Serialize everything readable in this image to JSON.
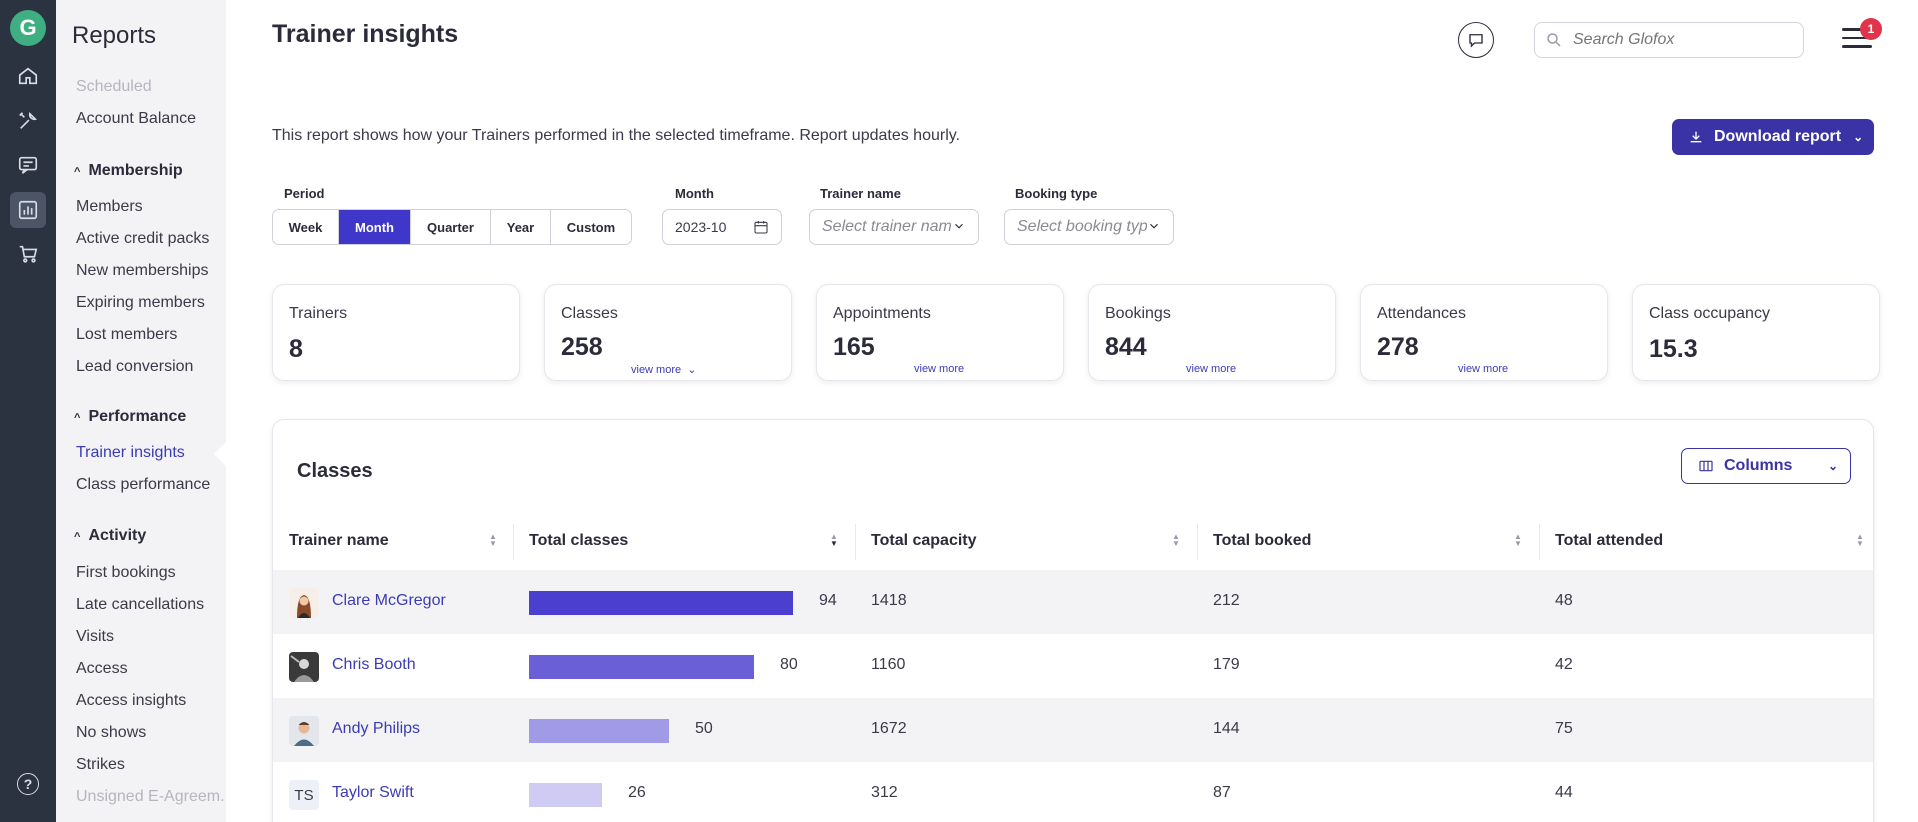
{
  "rail": {
    "logo": "G",
    "icons": [
      "home-icon",
      "tools-icon",
      "messages-icon",
      "reports-icon",
      "cart-icon",
      "help-icon"
    ],
    "colors": {
      "background": "#2b3340",
      "active": "#4b5566",
      "logo": "#3fae82"
    }
  },
  "subnav": {
    "title": "Reports",
    "items_top": [
      "Scheduled",
      "Account Balance"
    ],
    "sections": [
      {
        "label": "Membership",
        "items": [
          "Members",
          "Active credit packs",
          "New memberships",
          "Expiring members",
          "Lost members",
          "Lead conversion"
        ]
      },
      {
        "label": "Performance",
        "items": [
          "Trainer insights",
          "Class performance"
        ]
      },
      {
        "label": "Activity",
        "items": [
          "First bookings",
          "Late cancellations",
          "Visits",
          "Access",
          "Access insights",
          "No shows",
          "Strikes",
          "Unsigned E-Agreem..."
        ]
      }
    ],
    "active_item": "Trainer insights"
  },
  "header": {
    "title": "Trainer insights",
    "search_placeholder": "Search Glofox",
    "notification_count": "1"
  },
  "description": "This report shows how your Trainers performed in the selected timeframe. Report updates hourly.",
  "download_label": "Download report",
  "filters": {
    "period_label": "Period",
    "period_options": [
      "Week",
      "Month",
      "Quarter",
      "Year",
      "Custom"
    ],
    "period_selected": "Month",
    "month_label": "Month",
    "month_value": "2023-10",
    "trainer_label": "Trainer name",
    "trainer_placeholder": "Select trainer name",
    "booking_label": "Booking type",
    "booking_placeholder": "Select booking type"
  },
  "stats": [
    {
      "label": "Trainers",
      "value": "8",
      "more": ""
    },
    {
      "label": "Classes",
      "value": "258",
      "more": "view more"
    },
    {
      "label": "Appointments",
      "value": "165",
      "more": "view more"
    },
    {
      "label": "Bookings",
      "value": "844",
      "more": "view more"
    },
    {
      "label": "Attendances",
      "value": "278",
      "more": "view more"
    },
    {
      "label": "Class occupancy",
      "value": "15.3",
      "more": ""
    }
  ],
  "table": {
    "title": "Classes",
    "columns_label": "Columns",
    "headers": [
      "Trainer name",
      "Total classes",
      "Total capacity",
      "Total booked",
      "Total attended"
    ],
    "rows": [
      {
        "name": "Clare McGregor",
        "classes": "94",
        "capacity": "1418",
        "booked": "212",
        "attended": "48",
        "bar_color": "#4a3fcf",
        "avatar": "photo"
      },
      {
        "name": "Chris Booth",
        "classes": "80",
        "capacity": "1160",
        "booked": "179",
        "attended": "42",
        "bar_color": "#6a5fd6",
        "avatar": "photo"
      },
      {
        "name": "Andy Philips",
        "classes": "50",
        "capacity": "1672",
        "booked": "144",
        "attended": "75",
        "bar_color": "#a19ae6",
        "avatar": "photo"
      },
      {
        "name": "Taylor Swift",
        "classes": "26",
        "capacity": "312",
        "booked": "87",
        "attended": "44",
        "bar_color": "#cfcbf2",
        "avatar": "TS"
      }
    ],
    "max_classes": 94
  },
  "colors": {
    "accent": "#3a33a6",
    "link": "#3b3bb4",
    "alt_row": "#f3f3f6"
  }
}
